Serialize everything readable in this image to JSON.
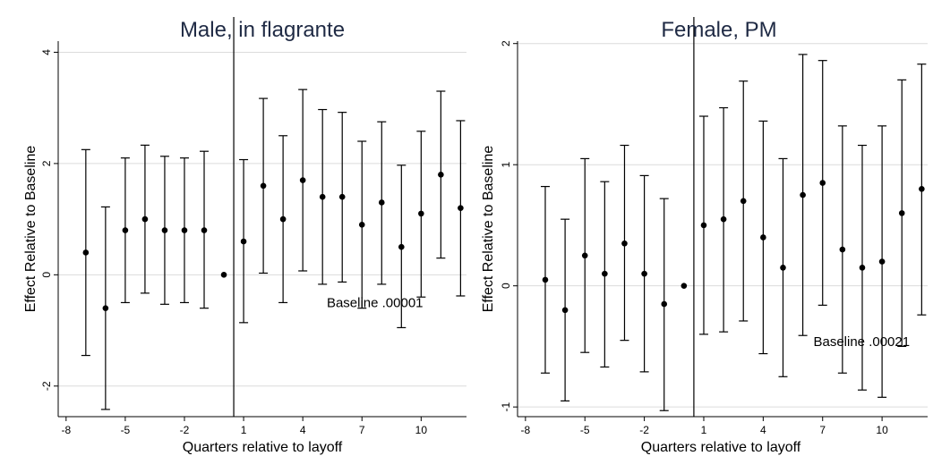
{
  "chart_data": [
    {
      "type": "scatter",
      "title": "Male, in flagrante",
      "xlabel": "Quarters relative to layoff",
      "ylabel": "Effect Relative to Baseline",
      "xticks": [
        -8,
        -5,
        -2,
        1,
        4,
        7,
        10
      ],
      "yticks": [
        -2,
        0,
        2,
        4
      ],
      "xlim": [
        -8.4,
        12.3
      ],
      "ylim": [
        -2.55,
        4.2
      ],
      "grid": true,
      "reference_line_x": 0.5,
      "annotation": "Baseline .00001",
      "annotation_x": 10.1,
      "annotation_y": -0.5,
      "points": [
        {
          "x": -7,
          "y": 0.4,
          "lo": -1.45,
          "hi": 2.25
        },
        {
          "x": -6,
          "y": -0.6,
          "lo": -2.42,
          "hi": 1.22
        },
        {
          "x": -5,
          "y": 0.8,
          "lo": -0.5,
          "hi": 2.1
        },
        {
          "x": -4,
          "y": 1.0,
          "lo": -0.33,
          "hi": 2.33
        },
        {
          "x": -3,
          "y": 0.8,
          "lo": -0.53,
          "hi": 2.13
        },
        {
          "x": -2,
          "y": 0.8,
          "lo": -0.5,
          "hi": 2.1
        },
        {
          "x": -1,
          "y": 0.8,
          "lo": -0.6,
          "hi": 2.22
        },
        {
          "x": 0,
          "y": 0.0
        },
        {
          "x": 1,
          "y": 0.6,
          "lo": -0.86,
          "hi": 2.07
        },
        {
          "x": 2,
          "y": 1.6,
          "lo": 0.03,
          "hi": 3.17
        },
        {
          "x": 3,
          "y": 1.0,
          "lo": -0.5,
          "hi": 2.5
        },
        {
          "x": 4,
          "y": 1.7,
          "lo": 0.07,
          "hi": 3.33
        },
        {
          "x": 5,
          "y": 1.4,
          "lo": -0.17,
          "hi": 2.97
        },
        {
          "x": 6,
          "y": 1.4,
          "lo": -0.13,
          "hi": 2.92
        },
        {
          "x": 7,
          "y": 0.9,
          "lo": -0.6,
          "hi": 2.4
        },
        {
          "x": 8,
          "y": 1.3,
          "lo": -0.17,
          "hi": 2.75
        },
        {
          "x": 9,
          "y": 0.5,
          "lo": -0.95,
          "hi": 1.97
        },
        {
          "x": 10,
          "y": 1.1,
          "lo": -0.4,
          "hi": 2.58
        },
        {
          "x": 11,
          "y": 1.8,
          "lo": 0.3,
          "hi": 3.3
        },
        {
          "x": 12,
          "y": 1.2,
          "lo": -0.38,
          "hi": 2.77
        }
      ]
    },
    {
      "type": "scatter",
      "title": "Female, PM",
      "xlabel": "Quarters relative to layoff",
      "ylabel": "Effect Relative to Baseline",
      "xticks": [
        -8,
        -5,
        -2,
        1,
        4,
        7,
        10
      ],
      "yticks": [
        -1,
        0,
        1,
        2
      ],
      "xlim": [
        -8.4,
        12.3
      ],
      "ylim": [
        -1.08,
        2.02
      ],
      "grid": true,
      "reference_line_x": 0.5,
      "annotation": "Baseline .00021",
      "annotation_x": 11.4,
      "annotation_y": -0.46,
      "points": [
        {
          "x": -7,
          "y": 0.05,
          "lo": -0.72,
          "hi": 0.82
        },
        {
          "x": -6,
          "y": -0.2,
          "lo": -0.95,
          "hi": 0.55
        },
        {
          "x": -5,
          "y": 0.25,
          "lo": -0.55,
          "hi": 1.05
        },
        {
          "x": -4,
          "y": 0.1,
          "lo": -0.67,
          "hi": 0.86
        },
        {
          "x": -3,
          "y": 0.35,
          "lo": -0.45,
          "hi": 1.16
        },
        {
          "x": -2,
          "y": 0.1,
          "lo": -0.71,
          "hi": 0.91
        },
        {
          "x": -1,
          "y": -0.15,
          "lo": -1.03,
          "hi": 0.72
        },
        {
          "x": 0,
          "y": 0.0
        },
        {
          "x": 1,
          "y": 0.5,
          "lo": -0.4,
          "hi": 1.4
        },
        {
          "x": 2,
          "y": 0.55,
          "lo": -0.38,
          "hi": 1.47
        },
        {
          "x": 3,
          "y": 0.7,
          "lo": -0.29,
          "hi": 1.69
        },
        {
          "x": 4,
          "y": 0.4,
          "lo": -0.56,
          "hi": 1.36
        },
        {
          "x": 5,
          "y": 0.15,
          "lo": -0.75,
          "hi": 1.05
        },
        {
          "x": 6,
          "y": 0.75,
          "lo": -0.41,
          "hi": 1.91
        },
        {
          "x": 7,
          "y": 0.85,
          "lo": -0.16,
          "hi": 1.86
        },
        {
          "x": 8,
          "y": 0.3,
          "lo": -0.72,
          "hi": 1.32
        },
        {
          "x": 9,
          "y": 0.15,
          "lo": -0.86,
          "hi": 1.16
        },
        {
          "x": 10,
          "y": 0.2,
          "lo": -0.92,
          "hi": 1.32
        },
        {
          "x": 11,
          "y": 0.6,
          "lo": -0.5,
          "hi": 1.7
        },
        {
          "x": 12,
          "y": 0.8,
          "lo": -0.24,
          "hi": 1.83
        }
      ]
    }
  ]
}
